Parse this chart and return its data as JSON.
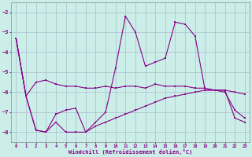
{
  "xlabel": "Windchill (Refroidissement éolien,°C)",
  "background_color": "#cceee8",
  "grid_color": "#aabbcc",
  "line_color": "#880088",
  "ylim": [
    -8.5,
    -1.5
  ],
  "xlim": [
    -0.5,
    23.5
  ],
  "yticks": [
    -8,
    -7,
    -6,
    -5,
    -4,
    -3,
    -2
  ],
  "xticks": [
    0,
    1,
    2,
    3,
    4,
    5,
    6,
    7,
    8,
    9,
    10,
    11,
    12,
    13,
    14,
    15,
    16,
    17,
    18,
    19,
    20,
    21,
    22,
    23
  ],
  "line1_x": [
    0,
    1,
    2,
    3,
    4,
    5,
    6,
    7,
    8,
    9,
    10,
    11,
    12,
    13,
    14,
    15,
    16,
    17,
    18,
    19,
    20,
    21,
    22,
    23
  ],
  "line1_y": [
    -3.3,
    -6.2,
    -5.5,
    -5.4,
    -5.6,
    -5.7,
    -5.7,
    -5.8,
    -5.8,
    -5.7,
    -5.8,
    -5.7,
    -5.7,
    -5.8,
    -5.6,
    -5.7,
    -5.7,
    -5.7,
    -5.8,
    -5.8,
    -5.9,
    -5.9,
    -6.0,
    -6.1
  ],
  "line2_x": [
    0,
    1,
    2,
    3,
    4,
    5,
    6,
    7,
    8,
    9,
    10,
    11,
    12,
    13,
    14,
    15,
    16,
    17,
    18,
    19,
    20,
    21,
    22,
    23
  ],
  "line2_y": [
    -3.3,
    -6.2,
    -7.9,
    -8.0,
    -7.1,
    -6.9,
    -6.8,
    -8.0,
    -7.5,
    -7.0,
    -4.8,
    -2.2,
    -3.0,
    -4.7,
    -4.5,
    -4.3,
    -2.5,
    -2.6,
    -3.2,
    -5.9,
    -5.9,
    -6.0,
    -6.9,
    -7.3
  ],
  "line3_x": [
    0,
    1,
    2,
    3,
    4,
    5,
    6,
    7,
    8,
    9,
    10,
    11,
    12,
    13,
    14,
    15,
    16,
    17,
    18,
    19,
    20,
    21,
    22,
    23
  ],
  "line3_y": [
    -3.3,
    -6.2,
    -7.9,
    -8.0,
    -7.5,
    -8.0,
    -8.0,
    -8.0,
    -7.7,
    -7.5,
    -7.3,
    -7.1,
    -6.9,
    -6.7,
    -6.5,
    -6.3,
    -6.2,
    -6.1,
    -6.0,
    -5.9,
    -5.9,
    -5.9,
    -7.3,
    -7.5
  ]
}
